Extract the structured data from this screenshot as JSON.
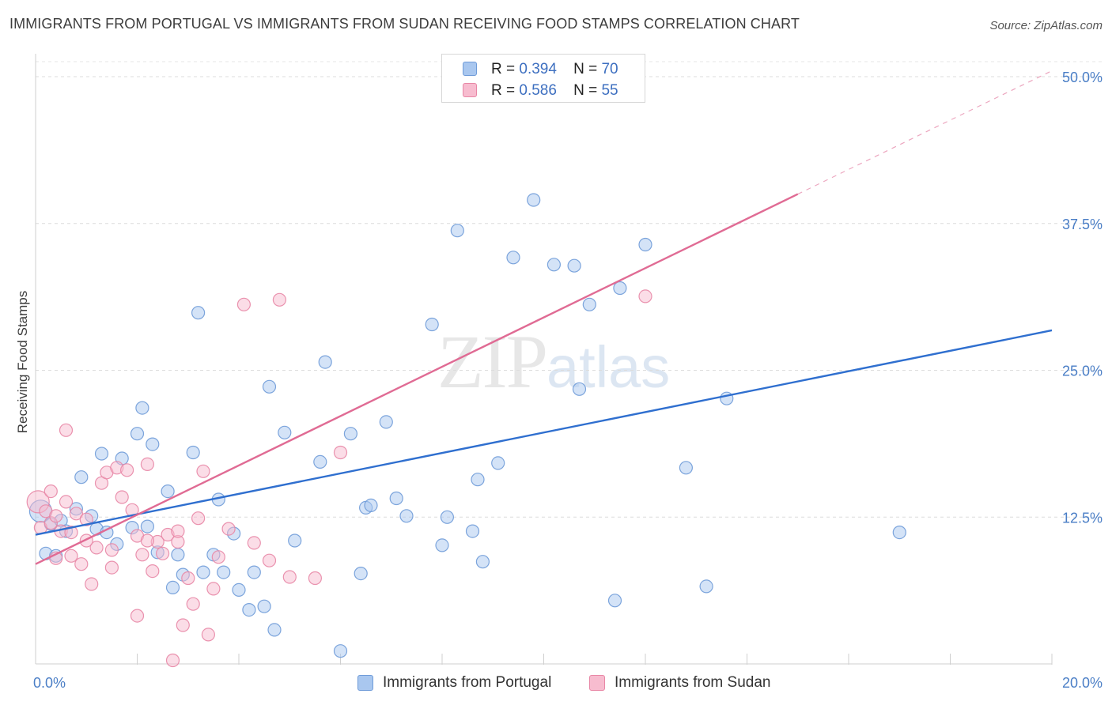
{
  "title": "IMMIGRANTS FROM PORTUGAL VS IMMIGRANTS FROM SUDAN RECEIVING FOOD STAMPS CORRELATION CHART",
  "source": "Source: ZipAtlas.com",
  "watermark": {
    "zip": "ZIP",
    "atlas": "atlas"
  },
  "legend": {
    "r_label": "R =",
    "n_label": "N =",
    "rows": [
      {
        "r": "0.394",
        "n": "70"
      },
      {
        "r": "0.586",
        "n": "55"
      }
    ]
  },
  "chart_data": {
    "type": "scatter",
    "title": "IMMIGRANTS FROM PORTUGAL VS IMMIGRANTS FROM SUDAN RECEIVING FOOD STAMPS CORRELATION CHART",
    "xlabel": "",
    "ylabel": "Receiving Food Stamps",
    "xlim": [
      0,
      20
    ],
    "ylim": [
      0,
      50
    ],
    "x_tick_labels": [
      {
        "value": 0,
        "label": "0.0%"
      },
      {
        "value": 20,
        "label": "20.0%"
      }
    ],
    "y_tick_labels": [
      {
        "value": 12.5,
        "label": "12.5%"
      },
      {
        "value": 25,
        "label": "25.0%"
      },
      {
        "value": 37.5,
        "label": "37.5%"
      },
      {
        "value": 50,
        "label": "50.0%"
      }
    ],
    "grid": true,
    "legend_position": "top-center",
    "series": [
      {
        "name": "Immigrants from Portugal",
        "color": "#a9c7ef",
        "edge": "#6f9bd8",
        "line_color": "#2f6fcf",
        "trend": {
          "x0": 0,
          "y0": 11.0,
          "x1": 20,
          "y1": 28.4,
          "dashed_to": null
        },
        "points": [
          [
            0.1,
            13.0
          ],
          [
            0.2,
            9.4
          ],
          [
            0.3,
            11.9
          ],
          [
            0.4,
            9.2
          ],
          [
            0.5,
            12.2
          ],
          [
            0.6,
            11.3
          ],
          [
            0.8,
            13.2
          ],
          [
            0.9,
            15.9
          ],
          [
            1.1,
            12.6
          ],
          [
            1.2,
            11.5
          ],
          [
            1.3,
            17.9
          ],
          [
            1.4,
            11.2
          ],
          [
            1.6,
            10.2
          ],
          [
            1.7,
            17.5
          ],
          [
            1.9,
            11.6
          ],
          [
            2.0,
            19.6
          ],
          [
            2.1,
            21.8
          ],
          [
            2.2,
            11.7
          ],
          [
            2.3,
            18.7
          ],
          [
            2.4,
            9.5
          ],
          [
            2.6,
            14.7
          ],
          [
            2.7,
            6.5
          ],
          [
            2.8,
            9.3
          ],
          [
            2.9,
            7.6
          ],
          [
            3.1,
            18.0
          ],
          [
            3.2,
            29.9
          ],
          [
            3.3,
            7.8
          ],
          [
            3.5,
            9.3
          ],
          [
            3.6,
            14.0
          ],
          [
            3.7,
            7.8
          ],
          [
            3.9,
            11.1
          ],
          [
            4.0,
            6.3
          ],
          [
            4.2,
            4.6
          ],
          [
            4.3,
            7.8
          ],
          [
            4.5,
            4.9
          ],
          [
            4.6,
            23.6
          ],
          [
            4.7,
            2.9
          ],
          [
            4.9,
            19.7
          ],
          [
            5.1,
            10.5
          ],
          [
            5.6,
            17.2
          ],
          [
            5.7,
            25.7
          ],
          [
            6.0,
            1.1
          ],
          [
            6.2,
            19.6
          ],
          [
            6.4,
            7.7
          ],
          [
            6.5,
            13.3
          ],
          [
            6.6,
            13.5
          ],
          [
            6.9,
            20.6
          ],
          [
            7.1,
            14.1
          ],
          [
            7.3,
            12.6
          ],
          [
            7.8,
            28.9
          ],
          [
            8.0,
            10.1
          ],
          [
            8.1,
            12.5
          ],
          [
            8.3,
            36.9
          ],
          [
            8.6,
            11.3
          ],
          [
            8.7,
            15.7
          ],
          [
            8.8,
            8.7
          ],
          [
            9.1,
            17.1
          ],
          [
            9.4,
            34.6
          ],
          [
            9.8,
            39.5
          ],
          [
            10.2,
            34.0
          ],
          [
            10.6,
            33.9
          ],
          [
            10.7,
            23.4
          ],
          [
            10.9,
            30.6
          ],
          [
            11.4,
            5.4
          ],
          [
            11.5,
            32.0
          ],
          [
            12.0,
            35.7
          ],
          [
            12.8,
            16.7
          ],
          [
            13.2,
            6.6
          ],
          [
            13.6,
            22.6
          ],
          [
            17.0,
            11.2
          ]
        ]
      },
      {
        "name": "Immigrants from Sudan",
        "color": "#f7bccf",
        "edge": "#e887a6",
        "line_color": "#e06b94",
        "trend": {
          "x0": 0,
          "y0": 8.5,
          "x1": 15.0,
          "y1": 40.0,
          "dashed_to": {
            "x": 20,
            "y": 50.5
          }
        },
        "points": [
          [
            0.05,
            13.8
          ],
          [
            0.1,
            11.6
          ],
          [
            0.2,
            13.0
          ],
          [
            0.3,
            12.0
          ],
          [
            0.4,
            9.0
          ],
          [
            0.5,
            11.3
          ],
          [
            0.6,
            13.8
          ],
          [
            0.7,
            9.2
          ],
          [
            0.8,
            12.8
          ],
          [
            0.9,
            8.5
          ],
          [
            0.6,
            19.9
          ],
          [
            1.0,
            12.3
          ],
          [
            1.1,
            6.8
          ],
          [
            1.2,
            9.9
          ],
          [
            1.3,
            15.4
          ],
          [
            1.4,
            16.3
          ],
          [
            1.5,
            8.2
          ],
          [
            1.6,
            16.7
          ],
          [
            1.7,
            14.2
          ],
          [
            1.8,
            16.5
          ],
          [
            1.9,
            13.1
          ],
          [
            2.0,
            4.1
          ],
          [
            2.1,
            9.3
          ],
          [
            2.2,
            17.0
          ],
          [
            2.3,
            7.9
          ],
          [
            2.4,
            10.4
          ],
          [
            2.5,
            9.4
          ],
          [
            2.6,
            11.0
          ],
          [
            2.7,
            0.3
          ],
          [
            2.8,
            10.4
          ],
          [
            2.9,
            3.3
          ],
          [
            3.0,
            7.3
          ],
          [
            3.1,
            5.1
          ],
          [
            3.2,
            12.4
          ],
          [
            3.3,
            16.4
          ],
          [
            3.4,
            2.5
          ],
          [
            3.5,
            6.4
          ],
          [
            3.6,
            9.1
          ],
          [
            3.8,
            11.5
          ],
          [
            4.1,
            30.6
          ],
          [
            4.3,
            10.3
          ],
          [
            4.6,
            8.8
          ],
          [
            4.8,
            31.0
          ],
          [
            5.0,
            7.4
          ],
          [
            5.5,
            7.3
          ],
          [
            6.0,
            18.0
          ],
          [
            12.0,
            31.3
          ],
          [
            0.3,
            14.7
          ],
          [
            0.7,
            11.2
          ],
          [
            1.0,
            10.5
          ],
          [
            1.5,
            9.7
          ],
          [
            2.0,
            10.9
          ],
          [
            2.2,
            10.5
          ],
          [
            2.8,
            11.3
          ],
          [
            0.4,
            12.6
          ]
        ]
      }
    ]
  }
}
